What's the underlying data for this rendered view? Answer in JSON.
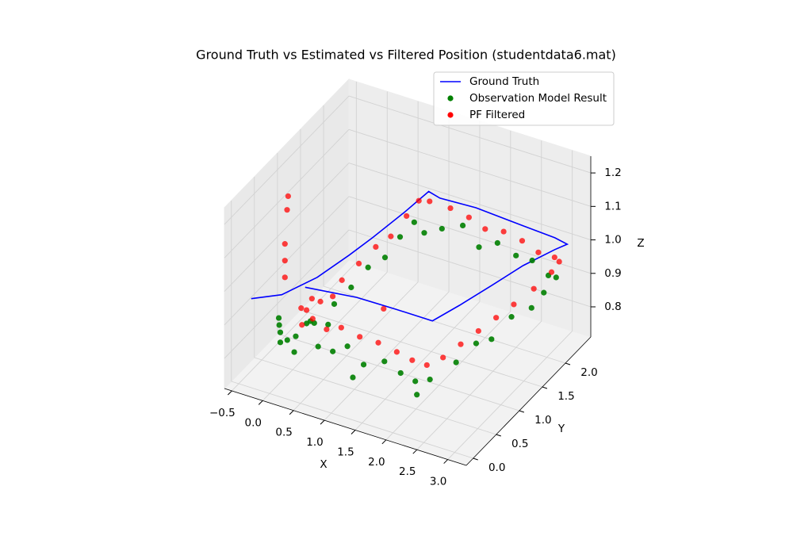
{
  "chart_data": {
    "type": "scatter3d",
    "title": "Ground Truth vs Estimated vs Filtered Position (studentdata6.mat)",
    "xlabel": "X",
    "ylabel": "Y",
    "zlabel": "Z",
    "xlim": [
      -0.62,
      3.3
    ],
    "ylim": [
      -0.15,
      2.55
    ],
    "zlim": [
      0.71,
      1.25
    ],
    "xticks": [
      {
        "value": -0.5,
        "label": "−0.5"
      },
      {
        "value": 0,
        "label": "0.0"
      },
      0.5,
      {
        "value": 1,
        "label": "1.0"
      },
      1.5,
      {
        "value": 2,
        "label": "2.0"
      },
      2.5,
      {
        "value": 3,
        "label": "3.0"
      }
    ],
    "yticks": [
      {
        "value": 0,
        "label": "0.0"
      },
      0.5,
      {
        "value": 1,
        "label": "1.0"
      },
      1.5,
      {
        "value": 2,
        "label": "2.0"
      }
    ],
    "zticks": [
      0.8,
      0.9,
      {
        "value": 1,
        "label": "1.0"
      },
      1.1,
      1.2
    ],
    "grid": true,
    "legend": "upper right",
    "series": [
      {
        "name": "Ground Truth",
        "style": "line",
        "color": "#0000ff",
        "x": [
          -0.2,
          0.13,
          0.36,
          0.49,
          0.57,
          0.66,
          0.71,
          0.93,
          1.49,
          2.3,
          2.83,
          3.06,
          2.97,
          2.77,
          2.62,
          2.46,
          2.31,
          1.72,
          1.09,
          0.33
        ],
        "y": [
          -0.13,
          0.09,
          0.55,
          1.07,
          1.47,
          2.04,
          2.5,
          2.45,
          2.48,
          2.43,
          2.4,
          2.36,
          2.21,
          1.79,
          1.31,
          0.83,
          0.44,
          0.44,
          0.43,
          0.33
        ],
        "z": [
          1,
          1,
          1,
          1,
          1,
          1,
          1,
          1,
          1,
          1,
          1,
          1,
          1,
          1,
          1,
          1,
          1,
          1,
          1,
          1
        ]
      },
      {
        "name": "Observation Model Result",
        "style": "marker",
        "color": "#008000",
        "x": [
          0.2,
          0.3,
          0.25,
          0.4,
          0.1,
          0.35,
          0.5,
          0.45,
          0.5,
          0.55,
          0.6,
          0.62,
          0.7,
          0.75,
          1.0,
          1.3,
          1.6,
          1.9,
          2.2,
          2.5,
          2.8,
          3.0,
          2.95,
          2.9,
          2.8,
          2.7,
          2.6,
          2.5,
          2.3,
          2.1,
          1.9,
          1.6,
          1.3,
          1.0,
          0.8,
          0.6,
          2.2,
          1.2,
          -0.2,
          -0.2,
          -0.18,
          -0.15
        ],
        "y": [
          0.3,
          0.4,
          0.2,
          0.35,
          0.25,
          0.5,
          0.6,
          0.8,
          1.1,
          1.4,
          1.7,
          2.0,
          2.2,
          2.35,
          2.4,
          2.45,
          2.4,
          2.4,
          2.4,
          2.35,
          2.3,
          2.2,
          2.0,
          1.8,
          1.5,
          1.2,
          1.0,
          0.7,
          0.4,
          0.35,
          0.3,
          0.35,
          0.3,
          0.35,
          0.3,
          0.25,
          0.25,
          0.2,
          0.5,
          0.5,
          0.45,
          0.4
        ],
        "z": [
          0.85,
          0.88,
          0.82,
          0.9,
          0.84,
          0.87,
          0.86,
          0.89,
          0.9,
          0.92,
          0.91,
          0.93,
          0.95,
          0.9,
          0.92,
          0.94,
          0.9,
          0.93,
          0.91,
          0.92,
          0.9,
          0.92,
          0.9,
          0.88,
          0.89,
          0.86,
          0.87,
          0.85,
          0.83,
          0.82,
          0.84,
          0.85,
          0.83,
          0.86,
          0.84,
          0.85,
          0.8,
          0.8,
          0.78,
          0.81,
          0.84,
          0.87
        ]
      },
      {
        "name": "PF Filtered",
        "style": "marker",
        "color": "#ff0000",
        "x": [
          0.3,
          0.35,
          0.4,
          0.25,
          0.45,
          0.3,
          0.5,
          0.5,
          0.55,
          0.6,
          0.62,
          0.65,
          0.7,
          0.8,
          1.1,
          1.4,
          1.7,
          2.0,
          2.3,
          2.6,
          2.9,
          3.05,
          3.0,
          2.9,
          2.8,
          2.7,
          2.6,
          2.5,
          2.4,
          2.25,
          2.05,
          1.8,
          1.5,
          1.2,
          0.9,
          0.7,
          1.4,
          -0.2,
          -0.2,
          -0.2,
          -0.18,
          -0.17
        ],
        "y": [
          0.4,
          0.45,
          0.4,
          0.35,
          0.5,
          0.3,
          0.7,
          0.9,
          1.2,
          1.5,
          1.8,
          2.1,
          2.3,
          2.4,
          2.45,
          2.45,
          2.4,
          2.4,
          2.4,
          2.35,
          2.3,
          2.2,
          2.1,
          1.85,
          1.55,
          1.3,
          1.05,
          0.8,
          0.55,
          0.4,
          0.35,
          0.35,
          0.35,
          0.35,
          0.35,
          0.3,
          0.6,
          0.6,
          0.6,
          0.6,
          0.62,
          0.63
        ],
        "z": [
          0.92,
          0.95,
          0.9,
          0.93,
          0.94,
          0.89,
          0.93,
          0.95,
          0.96,
          0.97,
          0.96,
          0.98,
          1.0,
          0.99,
          0.98,
          0.97,
          0.96,
          0.97,
          0.96,
          0.95,
          0.96,
          0.97,
          0.95,
          0.93,
          0.92,
          0.91,
          0.9,
          0.89,
          0.88,
          0.87,
          0.88,
          0.89,
          0.9,
          0.9,
          0.91,
          0.9,
          0.96,
          0.96,
          1.01,
          1.06,
          1.16,
          1.2
        ]
      }
    ]
  }
}
